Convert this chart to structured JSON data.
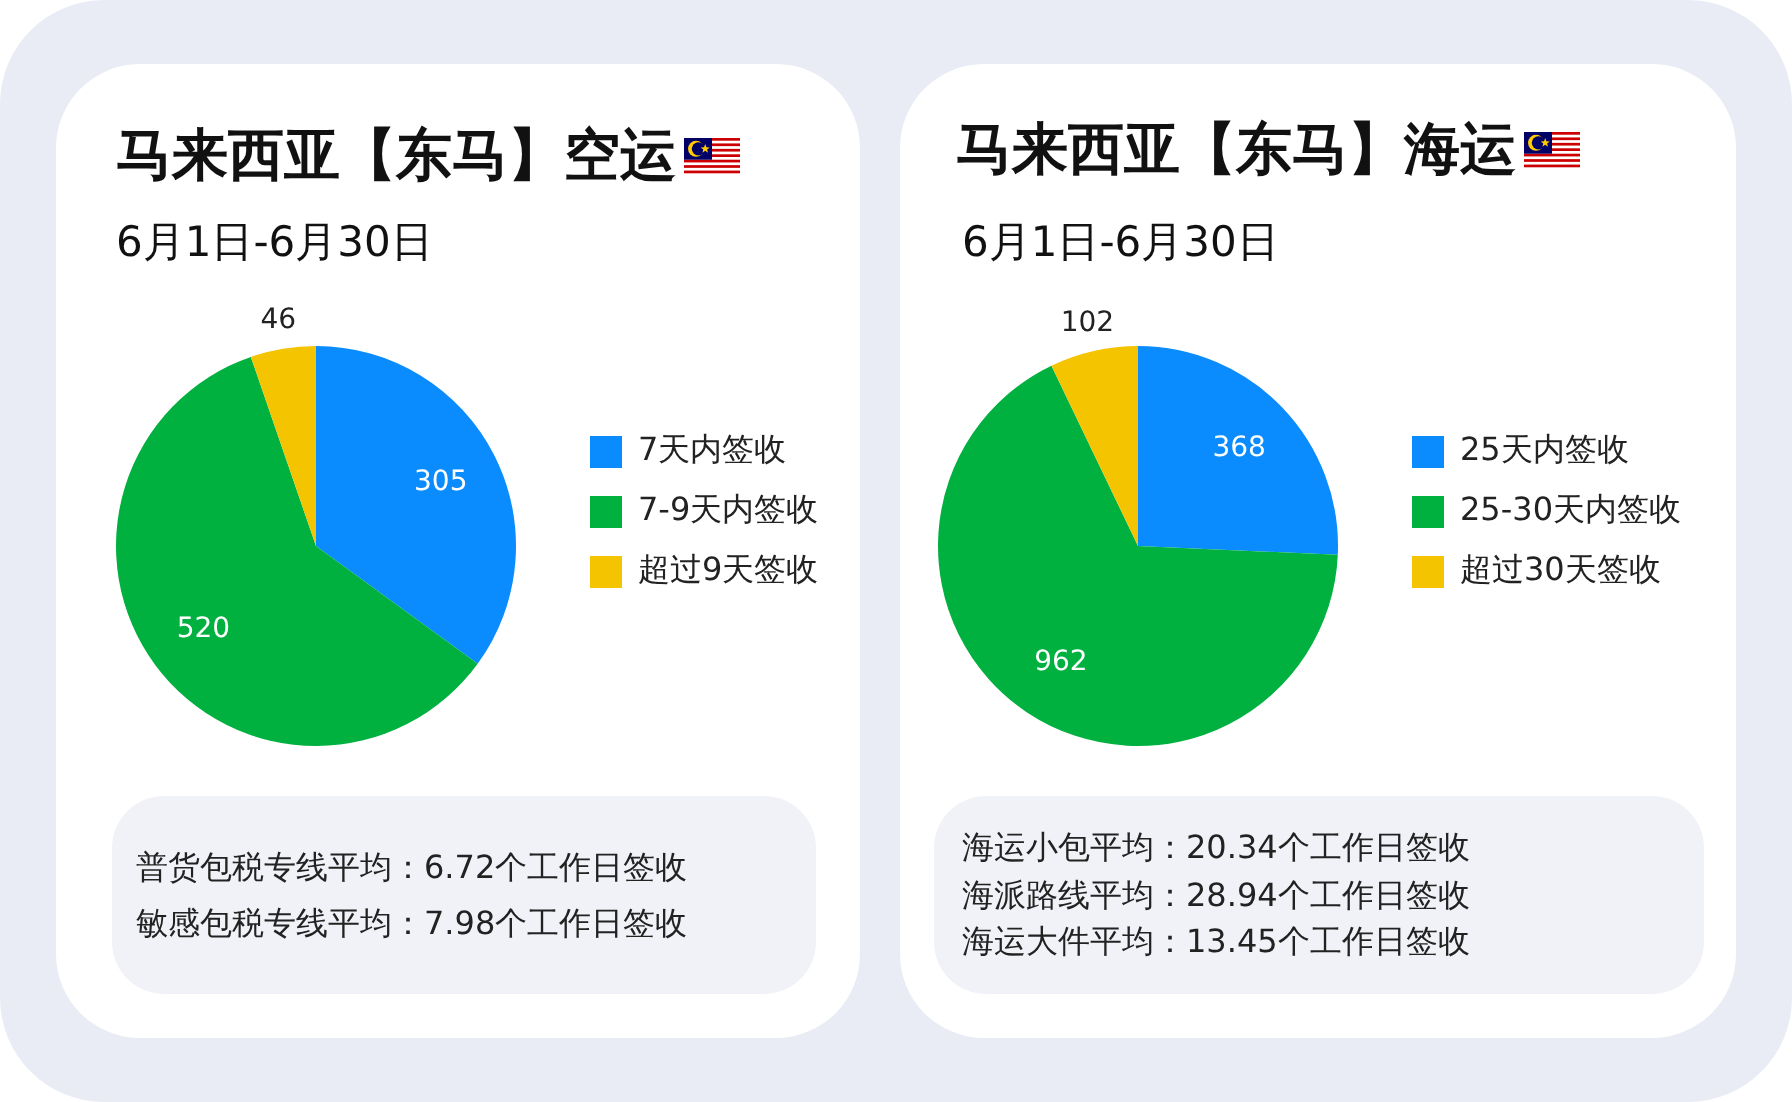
{
  "chart_data": [
    {
      "type": "pie",
      "title": "马来西亚【东马】空运",
      "subtitle": "6月1日-6月30日",
      "categories": [
        "7天内签收",
        "7-9天内签收",
        "超过9天签收"
      ],
      "values": [
        305,
        520,
        46
      ],
      "colors": [
        "#0a8cff",
        "#00b140",
        "#f5c400"
      ],
      "data_labels": true,
      "legend": "right",
      "annotations": [
        "普货包税专线平均：6.72个工作日签收",
        "敏感包税专线平均：7.98个工作日签收"
      ]
    },
    {
      "type": "pie",
      "title": "马来西亚【东马】海运",
      "subtitle": "6月1日-6月30日",
      "categories": [
        "25天内签收",
        "25-30天内签收",
        "超过30天签收"
      ],
      "values": [
        368,
        962,
        102
      ],
      "colors": [
        "#0a8cff",
        "#00b140",
        "#f5c400"
      ],
      "data_labels": true,
      "legend": "right",
      "annotations": [
        "海运小包平均：20.34个工作日签收",
        "海派路线平均：28.94个工作日签收",
        "海运大件平均：13.45个工作日签收"
      ]
    }
  ]
}
